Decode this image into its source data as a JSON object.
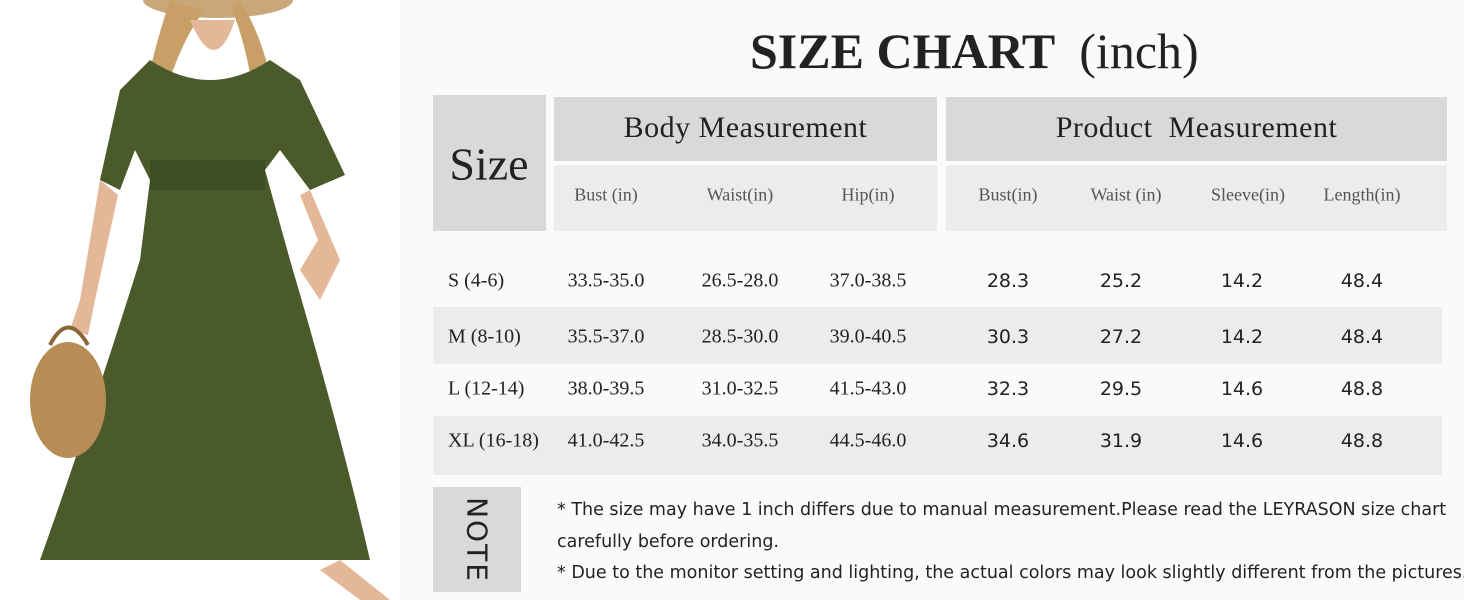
{
  "header": {
    "title": "SIZE CHART",
    "unit": "(inch)"
  },
  "table": {
    "size_label": "Size",
    "groups": [
      "Body Measurement",
      "Product  Measurement"
    ],
    "columns": [
      "Bust (in)",
      "Waist(in)",
      "Hip(in)",
      "Bust(in)",
      "Waist (in)",
      "Sleeve(in)",
      "Length(in)"
    ],
    "rows": [
      [
        "S (4-6)",
        "33.5-35.0",
        "26.5-28.0",
        "37.0-38.5",
        "28.3",
        "25.2",
        "14.2",
        "48.4"
      ],
      [
        "M (8-10)",
        "35.5-37.0",
        "28.5-30.0",
        "39.0-40.5",
        "30.3",
        "27.2",
        "14.2",
        "48.4"
      ],
      [
        "L (12-14)",
        "38.0-39.5",
        "31.0-32.5",
        "41.5-43.0",
        "32.3",
        "29.5",
        "14.6",
        "48.8"
      ],
      [
        "XL (16-18)",
        "41.0-42.5",
        "34.0-35.5",
        "44.5-46.0",
        "34.6",
        "31.9",
        "14.6",
        "48.8"
      ]
    ]
  },
  "note": {
    "label": "NOTE",
    "lines": [
      "* The size may have 1 inch differs due to manual measurement.Please read the LEYRASON size chart",
      "carefully before ordering.",
      "* Due to the monitor setting and lighting, the actual colors may look slightly different from the pictures."
    ]
  }
}
